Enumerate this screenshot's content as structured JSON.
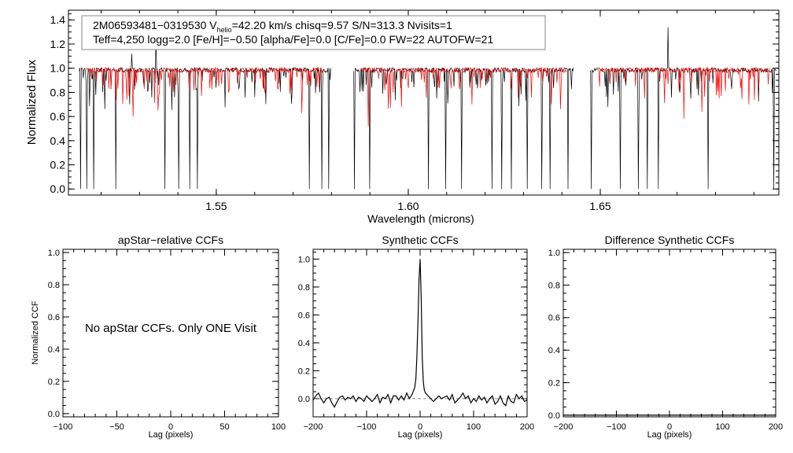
{
  "chart_data": [
    {
      "type": "line",
      "panel": "spectrum",
      "title": "",
      "xlabel": "Wavelength (microns)",
      "ylabel": "Normalized Flux",
      "xlim": [
        1.5115,
        1.6965
      ],
      "ylim": [
        -0.05,
        1.48
      ],
      "xticks": [
        1.55,
        1.6,
        1.65
      ],
      "xtick_labels": [
        "1.55",
        "1.60",
        "1.65"
      ],
      "yticks": [
        0.0,
        0.2,
        0.4,
        0.6,
        0.8,
        1.0,
        1.2,
        1.4
      ],
      "ytick_labels": [
        "0.0",
        "0.2",
        "0.4",
        "0.6",
        "0.8",
        "1.0",
        "1.2",
        "1.4"
      ],
      "chips": [
        [
          1.5143,
          1.58
        ],
        [
          1.5858,
          1.6431
        ],
        [
          1.6473,
          1.696
        ]
      ],
      "series": [
        {
          "color": "#000000",
          "features": [
            {
              "x": 1.5147,
              "y": 0.0
            },
            {
              "x": 1.5163,
              "y": 0.0
            },
            {
              "x": 1.518,
              "y": 0.0
            },
            {
              "x": 1.5238,
              "y": 0.0
            },
            {
              "x": 1.5366,
              "y": 0.0
            },
            {
              "x": 1.5403,
              "y": 0.0
            },
            {
              "x": 1.5431,
              "y": 0.0
            },
            {
              "x": 1.545,
              "y": 0.0
            },
            {
              "x": 1.5742,
              "y": 0.0
            },
            {
              "x": 1.5775,
              "y": 0.0
            },
            {
              "x": 1.5792,
              "y": 0.0
            },
            {
              "x": 1.5859,
              "y": 0.0
            },
            {
              "x": 1.59,
              "y": 0.0
            },
            {
              "x": 1.6053,
              "y": 0.0
            },
            {
              "x": 1.6098,
              "y": 0.0
            },
            {
              "x": 1.6139,
              "y": 0.0
            },
            {
              "x": 1.6218,
              "y": 0.0
            },
            {
              "x": 1.6244,
              "y": 0.0
            },
            {
              "x": 1.6269,
              "y": 0.0
            },
            {
              "x": 1.631,
              "y": 0.0
            },
            {
              "x": 1.6347,
              "y": 0.0
            },
            {
              "x": 1.637,
              "y": 0.0
            },
            {
              "x": 1.6416,
              "y": 0.0
            },
            {
              "x": 1.6476,
              "y": 0.0
            },
            {
              "x": 1.6553,
              "y": 0.0
            },
            {
              "x": 1.6599,
              "y": 0.0
            },
            {
              "x": 1.6622,
              "y": 0.0
            },
            {
              "x": 1.6651,
              "y": 0.0
            },
            {
              "x": 1.678,
              "y": 0.0
            },
            {
              "x": 1.6952,
              "y": 0.0
            },
            {
              "x": 1.5342,
              "y": 1.25
            },
            {
              "x": 1.6677,
              "y": 1.34
            },
            {
              "x": 1.528,
              "y": 1.12
            }
          ]
        },
        {
          "color": "#ff0000",
          "features": [
            {
              "x": 1.5284,
              "y": 0.6
            },
            {
              "x": 1.5348,
              "y": 0.65
            },
            {
              "x": 1.5722,
              "y": 0.63
            },
            {
              "x": 1.5895,
              "y": 0.52
            },
            {
              "x": 1.6165,
              "y": 0.7
            },
            {
              "x": 1.6397,
              "y": 0.66
            },
            {
              "x": 1.6718,
              "y": 0.58
            },
            {
              "x": 1.681,
              "y": 0.75
            }
          ]
        }
      ],
      "annotations": [
        {
          "parts": [
            "2M06593481−0319530  V",
            "helio",
            "=42.20 km/s  chisq=9.57  S/N=313.3  Nvisits=1"
          ]
        },
        {
          "text": "Teff=4,250 logg=2.0 [Fe/H]=−0.50 [alpha/Fe]=0.0 [C/Fe]=0.0 FW=22 AUTOFW=21"
        }
      ]
    },
    {
      "type": "line",
      "panel": "apstar-ccf",
      "title": "apStar−relative CCFs",
      "xlabel": "Lag (pixels)",
      "ylabel": "Normalized CCF",
      "xlim": [
        -100,
        100
      ],
      "ylim": [
        -0.02,
        1.02
      ],
      "xticks": [
        -100,
        -50,
        0,
        50,
        100
      ],
      "xtick_labels": [
        "−100",
        "−50",
        "0",
        "50",
        "100"
      ],
      "yticks": [
        0.0,
        0.2,
        0.4,
        0.6,
        0.8,
        1.0
      ],
      "ytick_labels": [
        "0.0",
        "0.2",
        "0.4",
        "0.6",
        "0.8",
        "1.0"
      ],
      "series": [],
      "annotation": "No apStar CCFs.  Only ONE Visit"
    },
    {
      "type": "line",
      "panel": "synthetic-ccf",
      "title": "Synthetic CCFs",
      "xlabel": "Lag (pixels)",
      "ylabel": "",
      "xlim": [
        -200,
        200
      ],
      "ylim": [
        -0.13,
        1.07
      ],
      "xticks": [
        -200,
        -100,
        0,
        100,
        200
      ],
      "xtick_labels": [
        "−200",
        "−100",
        "0",
        "100",
        "200"
      ],
      "yticks": [
        0.0,
        0.2,
        0.4,
        0.6,
        0.8,
        1.0
      ],
      "ytick_labels": [
        "0.0",
        "0.2",
        "0.4",
        "0.6",
        "0.8",
        "1.0"
      ],
      "reference_line": {
        "y": 0.0,
        "style": "dashed"
      },
      "series": [
        {
          "color": "#000000",
          "x": [
            -200,
            -195,
            -190,
            -185,
            -180,
            -175,
            -170,
            -165,
            -160,
            -155,
            -150,
            -145,
            -140,
            -135,
            -130,
            -125,
            -120,
            -115,
            -110,
            -105,
            -100,
            -95,
            -90,
            -85,
            -80,
            -75,
            -70,
            -65,
            -60,
            -55,
            -50,
            -45,
            -40,
            -35,
            -30,
            -25,
            -20,
            -15,
            -10,
            -8,
            -6,
            -4,
            -2,
            0,
            2,
            4,
            6,
            8,
            10,
            15,
            20,
            25,
            30,
            35,
            40,
            45,
            50,
            55,
            60,
            65,
            70,
            75,
            80,
            85,
            90,
            95,
            100,
            105,
            110,
            115,
            120,
            125,
            130,
            135,
            140,
            145,
            150,
            155,
            160,
            165,
            170,
            175,
            180,
            185,
            190,
            195,
            200
          ],
          "y": [
            -0.01,
            0.02,
            0.04,
            0.0,
            -0.03,
            0.0,
            0.01,
            -0.03,
            -0.06,
            -0.02,
            0.01,
            0.02,
            -0.01,
            0.01,
            0.0,
            0.02,
            -0.02,
            0.01,
            0.0,
            -0.02,
            0.02,
            0.0,
            -0.02,
            0.0,
            0.03,
            -0.03,
            0.01,
            0.0,
            0.03,
            -0.03,
            0.02,
            0.02,
            -0.01,
            0.02,
            -0.01,
            0.04,
            0.0,
            0.03,
            0.08,
            0.14,
            0.3,
            0.55,
            0.85,
            1.0,
            0.72,
            0.3,
            0.12,
            0.06,
            0.04,
            0.02,
            0.0,
            -0.02,
            0.0,
            0.02,
            0.0,
            0.01,
            0.02,
            -0.01,
            0.03,
            -0.03,
            -0.01,
            0.01,
            0.04,
            0.0,
            0.02,
            -0.03,
            0.0,
            -0.02,
            0.02,
            -0.01,
            0.01,
            -0.03,
            0.0,
            0.02,
            -0.04,
            -0.02,
            0.02,
            -0.03,
            -0.05,
            0.02,
            -0.02,
            -0.03,
            0.03,
            0.0,
            0.02,
            -0.02,
            -0.01
          ]
        }
      ]
    },
    {
      "type": "line",
      "panel": "difference-ccf",
      "title": "Difference Synthetic CCFs",
      "xlabel": "Lag (pixels)",
      "ylabel": "",
      "xlim": [
        -200,
        200
      ],
      "ylim": [
        -0.01,
        1.02
      ],
      "xticks": [
        -200,
        -100,
        0,
        100,
        200
      ],
      "xtick_labels": [
        "−200",
        "−100",
        "0",
        "100",
        "200"
      ],
      "yticks": [
        0.0,
        0.2,
        0.4,
        0.6,
        0.8,
        1.0
      ],
      "ytick_labels": [
        "0.0",
        "0.2",
        "0.4",
        "0.6",
        "0.8",
        "1.0"
      ],
      "series": [
        {
          "color": "#000000",
          "x": [
            -200,
            200
          ],
          "y": [
            0.0,
            0.0
          ]
        }
      ]
    }
  ]
}
